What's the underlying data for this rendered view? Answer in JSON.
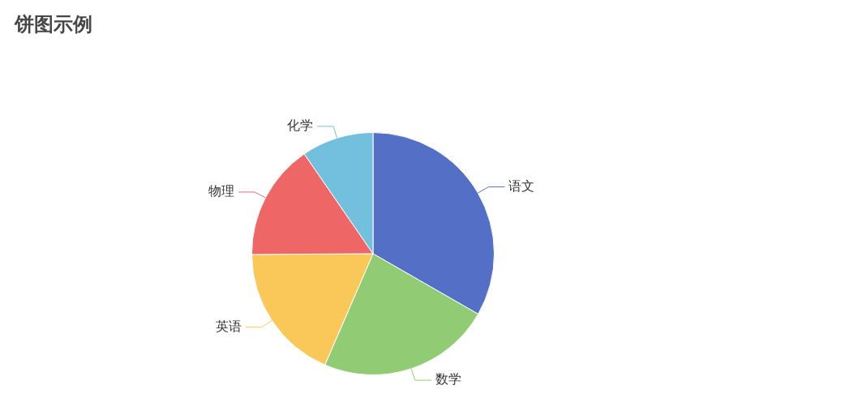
{
  "chart_data": {
    "type": "pie",
    "title": "饼图示例",
    "categories": [
      "语文",
      "数学",
      "英语",
      "物理",
      "化学"
    ],
    "values": [
      33.3,
      23.2,
      18.4,
      15.5,
      9.6
    ],
    "colors": [
      "#5470c6",
      "#91cc75",
      "#fac858",
      "#ee6666",
      "#73c0de"
    ],
    "legend": false
  }
}
